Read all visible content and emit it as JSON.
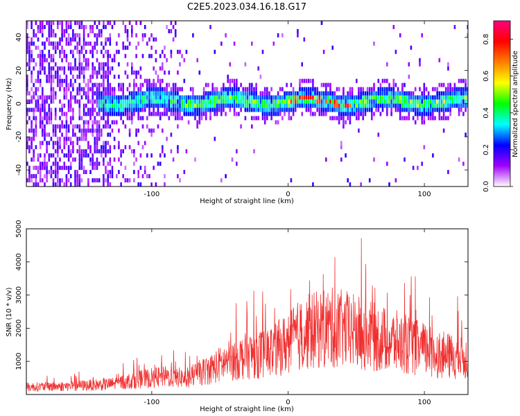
{
  "title": "C2E5.2023.034.16.18.G17",
  "chart_data": [
    {
      "type": "heatmap",
      "xlabel": "Height of straight line (km)",
      "ylabel": "Frequency (Hz)",
      "xlim": [
        -192,
        132
      ],
      "ylim": [
        -50,
        50
      ],
      "xticks": [
        -100,
        0,
        100
      ],
      "yticks": [
        -40,
        -20,
        0,
        20,
        40
      ],
      "colorbar": {
        "label": "Normalized spectral amplitude",
        "range": [
          0,
          0.9
        ],
        "ticks": [
          "0.0",
          "0.2",
          "0.4",
          "0.6",
          "0.8"
        ],
        "colormap": [
          "#ffffff",
          "#a000ff",
          "#0000ff",
          "#00ffff",
          "#00ff00",
          "#ffff00",
          "#ff8000",
          "#ff0000",
          "#ff0080"
        ]
      },
      "ridge": {
        "center_hz": 0,
        "half_width_hz": 6,
        "visible_from_km": -140,
        "peak_x_km": [
          0,
          45
        ]
      },
      "grid": false
    },
    {
      "type": "line",
      "xlabel": "Height of straight line (km)",
      "ylabel": "SNR (10 * v/v)",
      "xlim": [
        -192,
        132
      ],
      "ylim": [
        0,
        5000
      ],
      "xticks": [
        -100,
        0,
        100
      ],
      "yticks": [
        1000,
        2000,
        3000,
        4000,
        5000
      ],
      "color": "#f03030",
      "envelope": {
        "x": [
          -192,
          -160,
          -130,
          -110,
          -90,
          -75,
          -60,
          -45,
          -30,
          -15,
          -5,
          5,
          15,
          30,
          45,
          60,
          80,
          100,
          115,
          132
        ],
        "y": [
          250,
          280,
          350,
          500,
          600,
          550,
          800,
          1100,
          1300,
          1400,
          1600,
          1900,
          2100,
          2250,
          2150,
          1950,
          1750,
          1500,
          1300,
          1200
        ]
      },
      "grid": false
    }
  ]
}
